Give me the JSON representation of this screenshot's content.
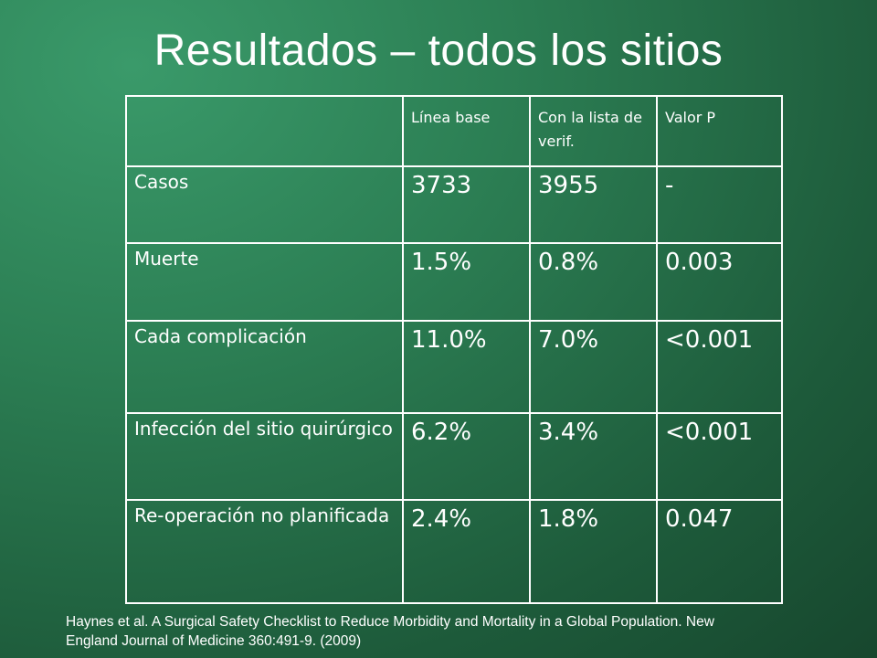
{
  "title": "Resultados – todos los sitios",
  "table": {
    "headers": [
      "",
      "Línea base",
      "Con la lista de verif.",
      "Valor P"
    ],
    "rows": [
      {
        "label": "Casos",
        "baseline": "3733",
        "checklist": "3955",
        "p_value": "-"
      },
      {
        "label": "Muerte",
        "baseline": "1.5%",
        "checklist": "0.8%",
        "p_value": "0.003"
      },
      {
        "label": "Cada complicación",
        "baseline": "11.0%",
        "checklist": "7.0%",
        "p_value": "<0.001"
      },
      {
        "label": "Infección del sitio quirúrgico",
        "baseline": "6.2%",
        "checklist": "3.4%",
        "p_value": "<0.001"
      },
      {
        "label": "Re-operación no planificada",
        "baseline": "2.4%",
        "checklist": "1.8%",
        "p_value": "0.047"
      }
    ]
  },
  "citation": "Haynes et al. A Surgical Safety Checklist to Reduce Morbidity and Mortality in a Global Population. New England Journal of Medicine 360:491-9. (2009)"
}
